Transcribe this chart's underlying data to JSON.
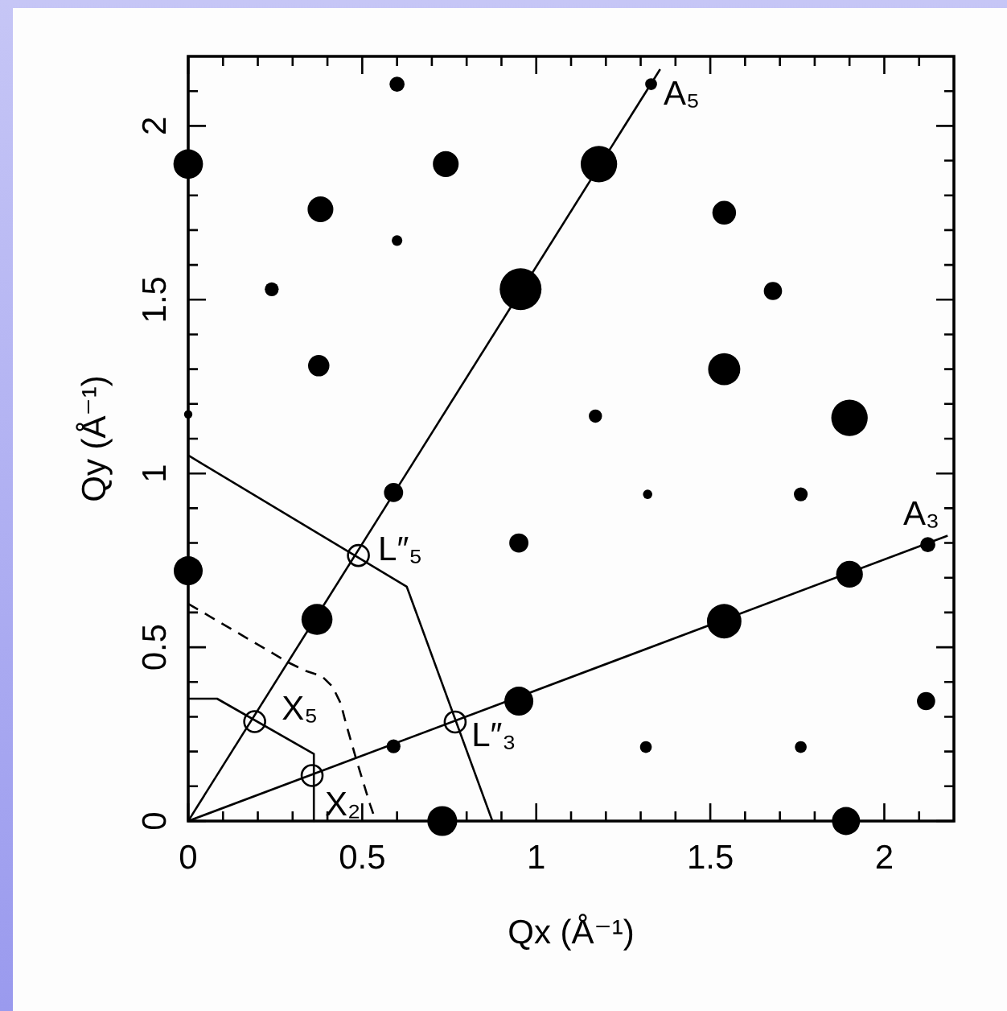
{
  "chart_data": {
    "type": "bubble",
    "xlabel": "Qx (Å⁻¹)",
    "ylabel": "Qy (Å⁻¹)",
    "xlim": [
      0,
      2.2
    ],
    "ylim": [
      0,
      2.2
    ],
    "xticks": [
      0,
      {
        "value": 0.1,
        "label": null
      },
      {
        "value": 0.2,
        "label": null
      },
      {
        "value": 0.3,
        "label": null
      },
      {
        "value": 0.4,
        "label": null
      },
      0.5,
      {
        "value": 0.6,
        "label": null
      },
      {
        "value": 0.7,
        "label": null
      },
      {
        "value": 0.8,
        "label": null
      },
      {
        "value": 0.9,
        "label": null
      },
      1,
      {
        "value": 1.1,
        "label": null
      },
      {
        "value": 1.2,
        "label": null
      },
      {
        "value": 1.3,
        "label": null
      },
      {
        "value": 1.4,
        "label": null
      },
      1.5,
      {
        "value": 1.6,
        "label": null
      },
      {
        "value": 1.7,
        "label": null
      },
      {
        "value": 1.8,
        "label": null
      },
      {
        "value": 1.9,
        "label": null
      },
      2,
      {
        "value": 2.1,
        "label": null
      }
    ],
    "yticks": [
      0,
      {
        "value": 0.1,
        "label": null
      },
      {
        "value": 0.2,
        "label": null
      },
      {
        "value": 0.3,
        "label": null
      },
      {
        "value": 0.4,
        "label": null
      },
      0.5,
      {
        "value": 0.6,
        "label": null
      },
      {
        "value": 0.7,
        "label": null
      },
      {
        "value": 0.8,
        "label": null
      },
      {
        "value": 0.9,
        "label": null
      },
      1,
      {
        "value": 1.1,
        "label": null
      },
      {
        "value": 1.2,
        "label": null
      },
      {
        "value": 1.3,
        "label": null
      },
      {
        "value": 1.4,
        "label": null
      },
      1.5,
      {
        "value": 1.6,
        "label": null
      },
      {
        "value": 1.7,
        "label": null
      },
      {
        "value": 1.8,
        "label": null
      },
      {
        "value": 1.9,
        "label": null
      },
      2,
      {
        "value": 2.1,
        "label": null
      }
    ],
    "series": [
      {
        "color": "#000000",
        "x": [
          0.6,
          0,
          0.74,
          1.18,
          1.33,
          0.38,
          1.54,
          0.6,
          0.24,
          0.955,
          1.68,
          0.375,
          1.54,
          0,
          1.17,
          1.9,
          0.59,
          1.32,
          1.76,
          0.95,
          2.125,
          0,
          1.9,
          0.37,
          1.54,
          0.95,
          2.12,
          0.59,
          1.315,
          1.76,
          0.73,
          1.89
        ],
        "values": [
          2.12,
          1.89,
          1.89,
          1.89,
          2.12,
          1.76,
          1.75,
          1.67,
          1.53,
          1.53,
          1.525,
          1.31,
          1.3,
          1.17,
          1.165,
          1.16,
          0.945,
          0.94,
          0.94,
          0.8,
          0.795,
          0.72,
          0.71,
          0.58,
          0.575,
          0.345,
          0.345,
          0.215,
          0.213,
          0.213,
          0,
          0
        ],
        "sizes": [
          0.13,
          0.5,
          0.38,
          0.76,
          0.08,
          0.38,
          0.32,
          0.065,
          0.11,
          1,
          0.19,
          0.26,
          0.59,
          0.04,
          0.1,
          0.76,
          0.21,
          0.05,
          0.11,
          0.21,
          0.13,
          0.48,
          0.41,
          0.55,
          0.68,
          0.48,
          0.19,
          0.11,
          0.08,
          0.08,
          0.51,
          0.45
        ]
      },
      {
        "type": "line",
        "color": "#000000",
        "x": [
          0,
          1.356
        ],
        "values": [
          0,
          2.163
        ]
      },
      {
        "type": "line",
        "color": "#000000",
        "x": [
          0,
          2.182
        ],
        "values": [
          0,
          0.821
        ]
      },
      {
        "type": "line",
        "color": "#000000",
        "x": [
          0,
          0.628,
          0.874
        ],
        "values": [
          1.052,
          0.674,
          0
        ]
      },
      {
        "type": "line",
        "color": "#000000",
        "x": [
          0,
          0.083,
          0.361,
          0.361
        ],
        "values": [
          0.352,
          0.352,
          0.193,
          0
        ]
      },
      {
        "type": "line",
        "color": "#000000",
        "line_style": "dashed",
        "x": [
          0,
          0.29,
          0.338,
          0.384,
          0.415,
          0.438,
          0.454,
          0.485,
          0.523,
          0.539
        ],
        "values": [
          0.625,
          0.455,
          0.432,
          0.417,
          0.386,
          0.339,
          0.278,
          0.17,
          0.046,
          0
        ]
      },
      {
        "type": "scatter",
        "color": "#000000",
        "marker": "circle",
        "x": [
          0.191,
          0.356,
          0.489,
          0.767
        ],
        "values": [
          0.286,
          0.131,
          0.764,
          0.285
        ]
      }
    ],
    "annotations": [
      {
        "text": "A₅",
        "x": 1.33,
        "y": 2.12
      },
      {
        "text": "A₃",
        "x": 2.125,
        "y": 0.795
      },
      {
        "text": "L″₅",
        "x": 0.489,
        "y": 0.764
      },
      {
        "text": "L″₃",
        "x": 0.767,
        "y": 0.285
      },
      {
        "text": "X₅",
        "x": 0.191,
        "y": 0.286
      },
      {
        "text": "X₂",
        "x": 0.356,
        "y": 0.131
      }
    ]
  }
}
